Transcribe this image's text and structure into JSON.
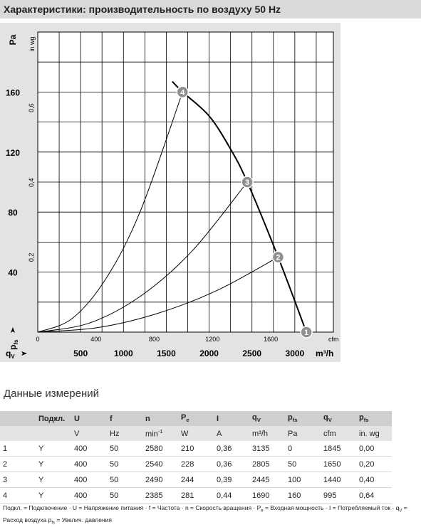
{
  "header": {
    "title": "Характеристики: производительность по воздуху 50 Hz"
  },
  "chart_data": {
    "type": "line",
    "y_label": "Pa",
    "y2_label": "in wg",
    "x_label": "m³/h",
    "x2_label": "cfm",
    "x_symbol": [
      "q",
      {
        "sub": "V"
      }
    ],
    "y_symbol": [
      "p",
      {
        "sub": "fs"
      }
    ],
    "xlim": [
      0,
      3450
    ],
    "xticks": [
      500,
      1000,
      1500,
      2000,
      2500,
      3000
    ],
    "x2lim": [
      0,
      2030
    ],
    "x2ticks": [
      0,
      400,
      800,
      1200,
      1600
    ],
    "ylim": [
      0,
      200
    ],
    "yticks": [
      40,
      80,
      120,
      160
    ],
    "y2lim": [
      0,
      0.803
    ],
    "y2ticks": [
      {
        "value": 0.2,
        "label": "0,2"
      },
      {
        "value": 0.4,
        "label": "0,4"
      },
      {
        "value": 0.6,
        "label": "0,6"
      }
    ],
    "grid": true,
    "xgrid": [
      250,
      500,
      750,
      1000,
      1250,
      1500,
      1750,
      2000,
      2250,
      2500,
      2750,
      3000,
      3250
    ],
    "ygrid": [
      20,
      40,
      60,
      80,
      100,
      120,
      140,
      160,
      180
    ],
    "series": [
      {
        "color": "#000000",
        "x": [
          1570,
          1690,
          2000,
          2250,
          2445,
          2805,
          3135
        ],
        "values": [
          167,
          160,
          144,
          122,
          100,
          50,
          0
        ]
      },
      {
        "color": "#000000",
        "x": [
          0,
          400,
          800,
          1200,
          1690
        ],
        "values": [
          0,
          9,
          36,
          81,
          160
        ]
      },
      {
        "color": "#000000",
        "x": [
          0,
          600,
          1200,
          1800,
          2445
        ],
        "values": [
          0,
          6,
          24,
          54,
          100
        ]
      },
      {
        "color": "#000000",
        "x": [
          0,
          700,
          1400,
          2100,
          2805
        ],
        "values": [
          0,
          3,
          12.5,
          28,
          50
        ]
      }
    ],
    "points": {
      "color": "#8f8f8f",
      "x": [
        3135,
        2805,
        2445,
        1690
      ],
      "values": [
        0,
        50,
        100,
        160
      ],
      "labels": [
        "1",
        "2",
        "3",
        "4"
      ]
    }
  },
  "table": {
    "title": "Данные измерений",
    "header": [
      "",
      "Подкл.",
      "U",
      "f",
      "n",
      [
        "P",
        {
          "sub": "e"
        }
      ],
      "I",
      [
        "q",
        {
          "sub": "V"
        }
      ],
      [
        "p",
        {
          "sub": "fs"
        }
      ],
      [
        "q",
        {
          "sub": "V"
        }
      ],
      [
        "p",
        {
          "sub": "fs"
        }
      ]
    ],
    "units": [
      "",
      "",
      "V",
      "Hz",
      [
        "min",
        {
          "sup": "-1"
        }
      ],
      "W",
      "A",
      "m³/h",
      "Pa",
      "cfm",
      "in. wg"
    ],
    "rows": [
      [
        "1",
        "Y",
        "400",
        "50",
        "2580",
        "210",
        "0,36",
        "3135",
        "0",
        "1845",
        "0,00"
      ],
      [
        "2",
        "Y",
        "400",
        "50",
        "2540",
        "228",
        "0,36",
        "2805",
        "50",
        "1650",
        "0,20"
      ],
      [
        "3",
        "Y",
        "400",
        "50",
        "2490",
        "244",
        "0,39",
        "2445",
        "100",
        "1440",
        "0,40"
      ],
      [
        "4",
        "Y",
        "400",
        "50",
        "2385",
        "281",
        "0,44",
        "1690",
        "160",
        "995",
        "0,64"
      ]
    ]
  },
  "footnote": [
    "Подкл. = Подключение · U = Напряжение питания · f = Частота · n = Скорость вращения · P",
    {
      "sub": "e"
    },
    " = Входная мощность · I = Потребляемый ток · q",
    {
      "sub": "V"
    },
    " = Расход воздуха p",
    {
      "sub": "fs"
    },
    " = Увелич. давления"
  ]
}
